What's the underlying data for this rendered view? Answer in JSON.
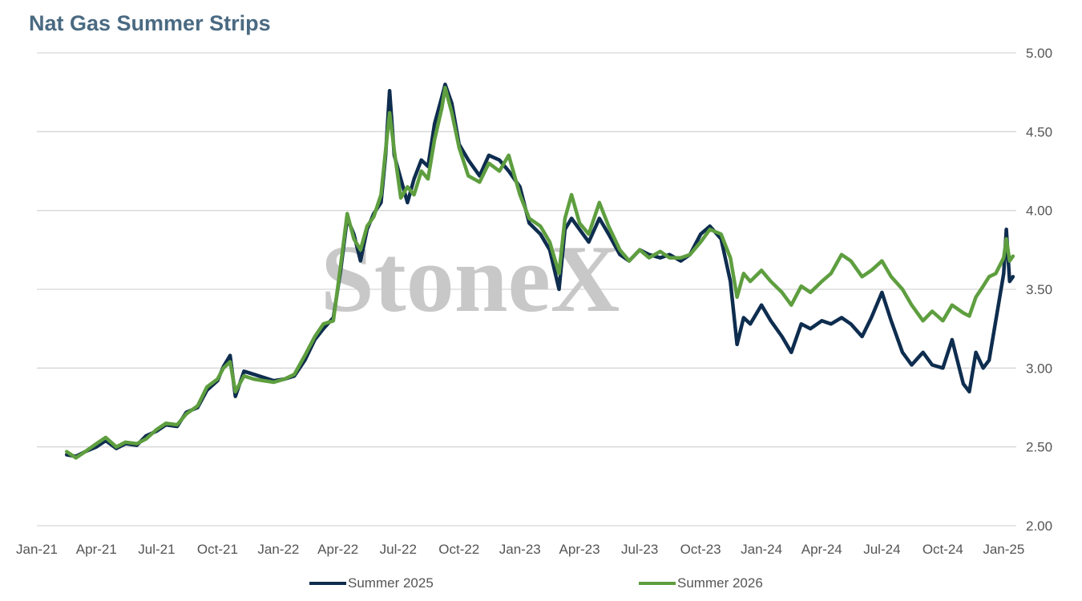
{
  "chart_data": {
    "type": "line",
    "title": "Nat Gas Summer Strips",
    "watermark": "StoneX",
    "x_tick_labels": [
      "Jan-21",
      "Apr-21",
      "Jul-21",
      "Oct-21",
      "Jan-22",
      "Apr-22",
      "Jul-22",
      "Oct-22",
      "Jan-23",
      "Apr-23",
      "Jul-23",
      "Oct-23",
      "Jan-24",
      "Apr-24",
      "Jul-24",
      "Oct-24",
      "Jan-25"
    ],
    "y_tick_labels": [
      "2.00",
      "2.50",
      "3.00",
      "3.50",
      "4.00",
      "4.50",
      "5.00"
    ],
    "ylim": [
      2.0,
      5.0
    ],
    "y_axis_side": "right",
    "grid": true,
    "legend_position": "bottom",
    "series": [
      {
        "name": "Summer 2025",
        "color": "#0e2d4f",
        "points": [
          [
            "2021-02-15",
            2.45
          ],
          [
            "2021-03-01",
            2.44
          ],
          [
            "2021-03-15",
            2.47
          ],
          [
            "2021-04-01",
            2.5
          ],
          [
            "2021-04-15",
            2.54
          ],
          [
            "2021-05-01",
            2.49
          ],
          [
            "2021-05-15",
            2.52
          ],
          [
            "2021-06-01",
            2.51
          ],
          [
            "2021-06-15",
            2.57
          ],
          [
            "2021-07-01",
            2.6
          ],
          [
            "2021-07-15",
            2.64
          ],
          [
            "2021-08-01",
            2.63
          ],
          [
            "2021-08-15",
            2.72
          ],
          [
            "2021-09-01",
            2.75
          ],
          [
            "2021-09-15",
            2.86
          ],
          [
            "2021-10-01",
            2.92
          ],
          [
            "2021-10-10",
            3.01
          ],
          [
            "2021-10-20",
            3.08
          ],
          [
            "2021-10-28",
            2.82
          ],
          [
            "2021-11-10",
            2.98
          ],
          [
            "2021-11-25",
            2.96
          ],
          [
            "2021-12-10",
            2.94
          ],
          [
            "2021-12-25",
            2.92
          ],
          [
            "2022-01-10",
            2.93
          ],
          [
            "2022-01-25",
            2.95
          ],
          [
            "2022-02-10",
            3.05
          ],
          [
            "2022-02-25",
            3.18
          ],
          [
            "2022-03-10",
            3.25
          ],
          [
            "2022-03-25",
            3.32
          ],
          [
            "2022-04-05",
            3.62
          ],
          [
            "2022-04-15",
            3.95
          ],
          [
            "2022-04-25",
            3.85
          ],
          [
            "2022-05-05",
            3.68
          ],
          [
            "2022-05-15",
            3.88
          ],
          [
            "2022-05-25",
            3.98
          ],
          [
            "2022-06-05",
            4.05
          ],
          [
            "2022-06-12",
            4.35
          ],
          [
            "2022-06-18",
            4.76
          ],
          [
            "2022-06-25",
            4.35
          ],
          [
            "2022-07-05",
            4.2
          ],
          [
            "2022-07-15",
            4.05
          ],
          [
            "2022-07-25",
            4.2
          ],
          [
            "2022-08-05",
            4.32
          ],
          [
            "2022-08-15",
            4.28
          ],
          [
            "2022-08-25",
            4.55
          ],
          [
            "2022-09-05",
            4.72
          ],
          [
            "2022-09-10",
            4.8
          ],
          [
            "2022-09-20",
            4.68
          ],
          [
            "2022-10-01",
            4.42
          ],
          [
            "2022-10-15",
            4.32
          ],
          [
            "2022-11-01",
            4.22
          ],
          [
            "2022-11-15",
            4.35
          ],
          [
            "2022-12-01",
            4.32
          ],
          [
            "2022-12-15",
            4.25
          ],
          [
            "2023-01-01",
            4.15
          ],
          [
            "2023-01-15",
            3.92
          ],
          [
            "2023-02-01",
            3.85
          ],
          [
            "2023-02-15",
            3.75
          ],
          [
            "2023-03-01",
            3.5
          ],
          [
            "2023-03-10",
            3.88
          ],
          [
            "2023-03-20",
            3.95
          ],
          [
            "2023-04-01",
            3.88
          ],
          [
            "2023-04-15",
            3.8
          ],
          [
            "2023-05-01",
            3.95
          ],
          [
            "2023-05-15",
            3.85
          ],
          [
            "2023-06-01",
            3.72
          ],
          [
            "2023-06-15",
            3.68
          ],
          [
            "2023-07-01",
            3.75
          ],
          [
            "2023-07-15",
            3.72
          ],
          [
            "2023-08-01",
            3.7
          ],
          [
            "2023-08-15",
            3.72
          ],
          [
            "2023-09-01",
            3.68
          ],
          [
            "2023-09-15",
            3.72
          ],
          [
            "2023-10-01",
            3.85
          ],
          [
            "2023-10-15",
            3.9
          ],
          [
            "2023-11-01",
            3.82
          ],
          [
            "2023-11-15",
            3.55
          ],
          [
            "2023-11-25",
            3.15
          ],
          [
            "2023-12-05",
            3.32
          ],
          [
            "2023-12-15",
            3.28
          ],
          [
            "2024-01-01",
            3.4
          ],
          [
            "2024-01-15",
            3.3
          ],
          [
            "2024-02-01",
            3.2
          ],
          [
            "2024-02-15",
            3.1
          ],
          [
            "2024-03-01",
            3.28
          ],
          [
            "2024-03-15",
            3.25
          ],
          [
            "2024-04-01",
            3.3
          ],
          [
            "2024-04-15",
            3.28
          ],
          [
            "2024-05-01",
            3.32
          ],
          [
            "2024-05-15",
            3.28
          ],
          [
            "2024-06-01",
            3.2
          ],
          [
            "2024-06-15",
            3.32
          ],
          [
            "2024-07-01",
            3.48
          ],
          [
            "2024-07-15",
            3.3
          ],
          [
            "2024-08-01",
            3.1
          ],
          [
            "2024-08-15",
            3.02
          ],
          [
            "2024-09-01",
            3.1
          ],
          [
            "2024-09-15",
            3.02
          ],
          [
            "2024-10-01",
            3.0
          ],
          [
            "2024-10-15",
            3.18
          ],
          [
            "2024-11-01",
            2.9
          ],
          [
            "2024-11-10",
            2.85
          ],
          [
            "2024-11-20",
            3.1
          ],
          [
            "2024-12-01",
            3.0
          ],
          [
            "2024-12-10",
            3.05
          ],
          [
            "2024-12-20",
            3.3
          ],
          [
            "2025-01-01",
            3.6
          ],
          [
            "2025-01-05",
            3.88
          ],
          [
            "2025-01-10",
            3.55
          ],
          [
            "2025-01-15",
            3.58
          ]
        ]
      },
      {
        "name": "Summer 2026",
        "color": "#5e9e3f",
        "points": [
          [
            "2021-02-15",
            2.47
          ],
          [
            "2021-03-01",
            2.43
          ],
          [
            "2021-03-15",
            2.47
          ],
          [
            "2021-04-01",
            2.52
          ],
          [
            "2021-04-15",
            2.56
          ],
          [
            "2021-05-01",
            2.5
          ],
          [
            "2021-05-15",
            2.53
          ],
          [
            "2021-06-01",
            2.52
          ],
          [
            "2021-06-15",
            2.55
          ],
          [
            "2021-07-01",
            2.61
          ],
          [
            "2021-07-15",
            2.65
          ],
          [
            "2021-08-01",
            2.64
          ],
          [
            "2021-08-15",
            2.71
          ],
          [
            "2021-09-01",
            2.76
          ],
          [
            "2021-09-15",
            2.88
          ],
          [
            "2021-10-01",
            2.93
          ],
          [
            "2021-10-10",
            3.0
          ],
          [
            "2021-10-20",
            3.04
          ],
          [
            "2021-10-28",
            2.85
          ],
          [
            "2021-11-10",
            2.95
          ],
          [
            "2021-11-25",
            2.93
          ],
          [
            "2021-12-10",
            2.92
          ],
          [
            "2021-12-25",
            2.91
          ],
          [
            "2022-01-10",
            2.93
          ],
          [
            "2022-01-25",
            2.96
          ],
          [
            "2022-02-10",
            3.08
          ],
          [
            "2022-02-25",
            3.2
          ],
          [
            "2022-03-10",
            3.28
          ],
          [
            "2022-03-25",
            3.3
          ],
          [
            "2022-04-05",
            3.65
          ],
          [
            "2022-04-15",
            3.98
          ],
          [
            "2022-04-25",
            3.82
          ],
          [
            "2022-05-05",
            3.75
          ],
          [
            "2022-05-15",
            3.9
          ],
          [
            "2022-05-25",
            3.96
          ],
          [
            "2022-06-05",
            4.1
          ],
          [
            "2022-06-12",
            4.38
          ],
          [
            "2022-06-18",
            4.62
          ],
          [
            "2022-06-25",
            4.38
          ],
          [
            "2022-07-05",
            4.08
          ],
          [
            "2022-07-15",
            4.15
          ],
          [
            "2022-07-25",
            4.1
          ],
          [
            "2022-08-05",
            4.25
          ],
          [
            "2022-08-15",
            4.2
          ],
          [
            "2022-08-25",
            4.45
          ],
          [
            "2022-09-05",
            4.65
          ],
          [
            "2022-09-10",
            4.78
          ],
          [
            "2022-09-20",
            4.62
          ],
          [
            "2022-10-01",
            4.4
          ],
          [
            "2022-10-15",
            4.22
          ],
          [
            "2022-11-01",
            4.18
          ],
          [
            "2022-11-15",
            4.3
          ],
          [
            "2022-12-01",
            4.25
          ],
          [
            "2022-12-15",
            4.35
          ],
          [
            "2023-01-01",
            4.1
          ],
          [
            "2023-01-15",
            3.95
          ],
          [
            "2023-02-01",
            3.9
          ],
          [
            "2023-02-15",
            3.8
          ],
          [
            "2023-03-01",
            3.6
          ],
          [
            "2023-03-10",
            3.95
          ],
          [
            "2023-03-20",
            4.1
          ],
          [
            "2023-04-01",
            3.92
          ],
          [
            "2023-04-15",
            3.85
          ],
          [
            "2023-05-01",
            4.05
          ],
          [
            "2023-05-15",
            3.9
          ],
          [
            "2023-06-01",
            3.75
          ],
          [
            "2023-06-15",
            3.68
          ],
          [
            "2023-07-01",
            3.75
          ],
          [
            "2023-07-15",
            3.7
          ],
          [
            "2023-08-01",
            3.74
          ],
          [
            "2023-08-15",
            3.7
          ],
          [
            "2023-09-01",
            3.7
          ],
          [
            "2023-09-15",
            3.72
          ],
          [
            "2023-10-01",
            3.8
          ],
          [
            "2023-10-15",
            3.88
          ],
          [
            "2023-11-01",
            3.85
          ],
          [
            "2023-11-15",
            3.7
          ],
          [
            "2023-11-25",
            3.45
          ],
          [
            "2023-12-05",
            3.6
          ],
          [
            "2023-12-15",
            3.55
          ],
          [
            "2024-01-01",
            3.62
          ],
          [
            "2024-01-15",
            3.55
          ],
          [
            "2024-02-01",
            3.48
          ],
          [
            "2024-02-15",
            3.4
          ],
          [
            "2024-03-01",
            3.52
          ],
          [
            "2024-03-15",
            3.48
          ],
          [
            "2024-04-01",
            3.55
          ],
          [
            "2024-04-15",
            3.6
          ],
          [
            "2024-05-01",
            3.72
          ],
          [
            "2024-05-15",
            3.68
          ],
          [
            "2024-06-01",
            3.58
          ],
          [
            "2024-06-15",
            3.62
          ],
          [
            "2024-07-01",
            3.68
          ],
          [
            "2024-07-15",
            3.58
          ],
          [
            "2024-08-01",
            3.5
          ],
          [
            "2024-08-15",
            3.4
          ],
          [
            "2024-09-01",
            3.3
          ],
          [
            "2024-09-15",
            3.36
          ],
          [
            "2024-10-01",
            3.3
          ],
          [
            "2024-10-15",
            3.4
          ],
          [
            "2024-11-01",
            3.35
          ],
          [
            "2024-11-10",
            3.33
          ],
          [
            "2024-11-20",
            3.45
          ],
          [
            "2024-12-01",
            3.52
          ],
          [
            "2024-12-10",
            3.58
          ],
          [
            "2024-12-20",
            3.6
          ],
          [
            "2025-01-01",
            3.7
          ],
          [
            "2025-01-05",
            3.82
          ],
          [
            "2025-01-10",
            3.68
          ],
          [
            "2025-01-15",
            3.71
          ]
        ]
      }
    ]
  }
}
